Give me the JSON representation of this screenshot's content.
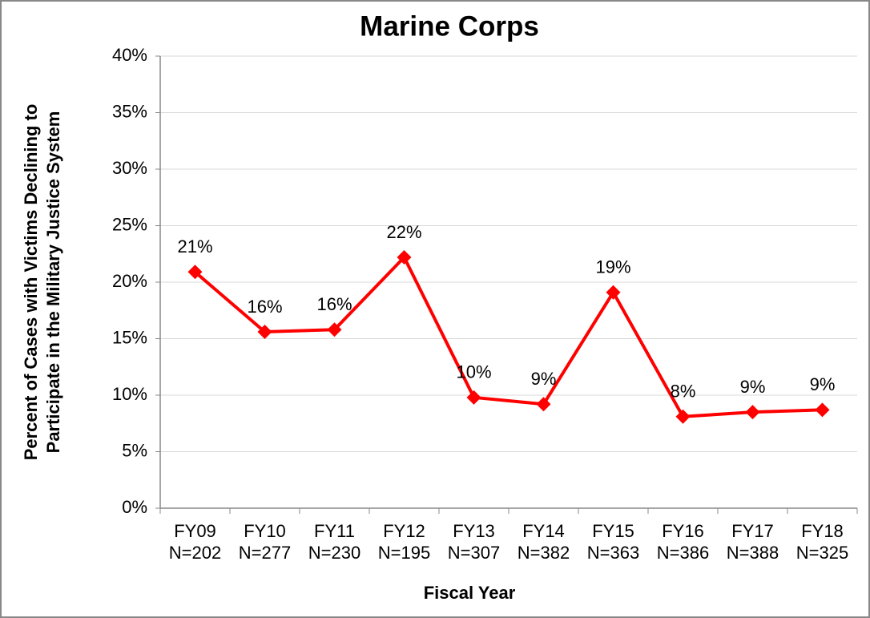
{
  "chart_data": {
    "type": "line",
    "title": "Marine Corps",
    "y_label": [
      "Percent of Cases with Victims Declining to",
      "Participate in the Military Justice System"
    ],
    "x_label": "Fiscal Year",
    "categories": [
      [
        "FY09",
        "N=202"
      ],
      [
        "FY10",
        "N=277"
      ],
      [
        "FY11",
        "N=230"
      ],
      [
        "FY12",
        "N=195"
      ],
      [
        "FY13",
        "N=307"
      ],
      [
        "FY14",
        "N=382"
      ],
      [
        "FY15",
        "N=363"
      ],
      [
        "FY16",
        "N=386"
      ],
      [
        "FY17",
        "N=388"
      ],
      [
        "FY18",
        "N=325"
      ]
    ],
    "series": [
      {
        "color": "#ff0000",
        "values": [
          20.9,
          15.6,
          15.8,
          22.2,
          9.8,
          9.2,
          19.1,
          8.1,
          8.5,
          8.7
        ],
        "value_labels": [
          "21%",
          "16%",
          "16%",
          "22%",
          "10%",
          "9%",
          "19%",
          "8%",
          "9%",
          "9%"
        ]
      }
    ],
    "ylim": [
      0,
      40
    ],
    "yticks": [
      {
        "value": 0,
        "label": "0%"
      },
      {
        "value": 5,
        "label": "5%"
      },
      {
        "value": 10,
        "label": "10%"
      },
      {
        "value": 15,
        "label": "15%"
      },
      {
        "value": 20,
        "label": "20%"
      },
      {
        "value": 25,
        "label": "25%"
      },
      {
        "value": 30,
        "label": "30%"
      },
      {
        "value": 35,
        "label": "35%"
      },
      {
        "value": 40,
        "label": "40%"
      }
    ],
    "grid": true
  }
}
